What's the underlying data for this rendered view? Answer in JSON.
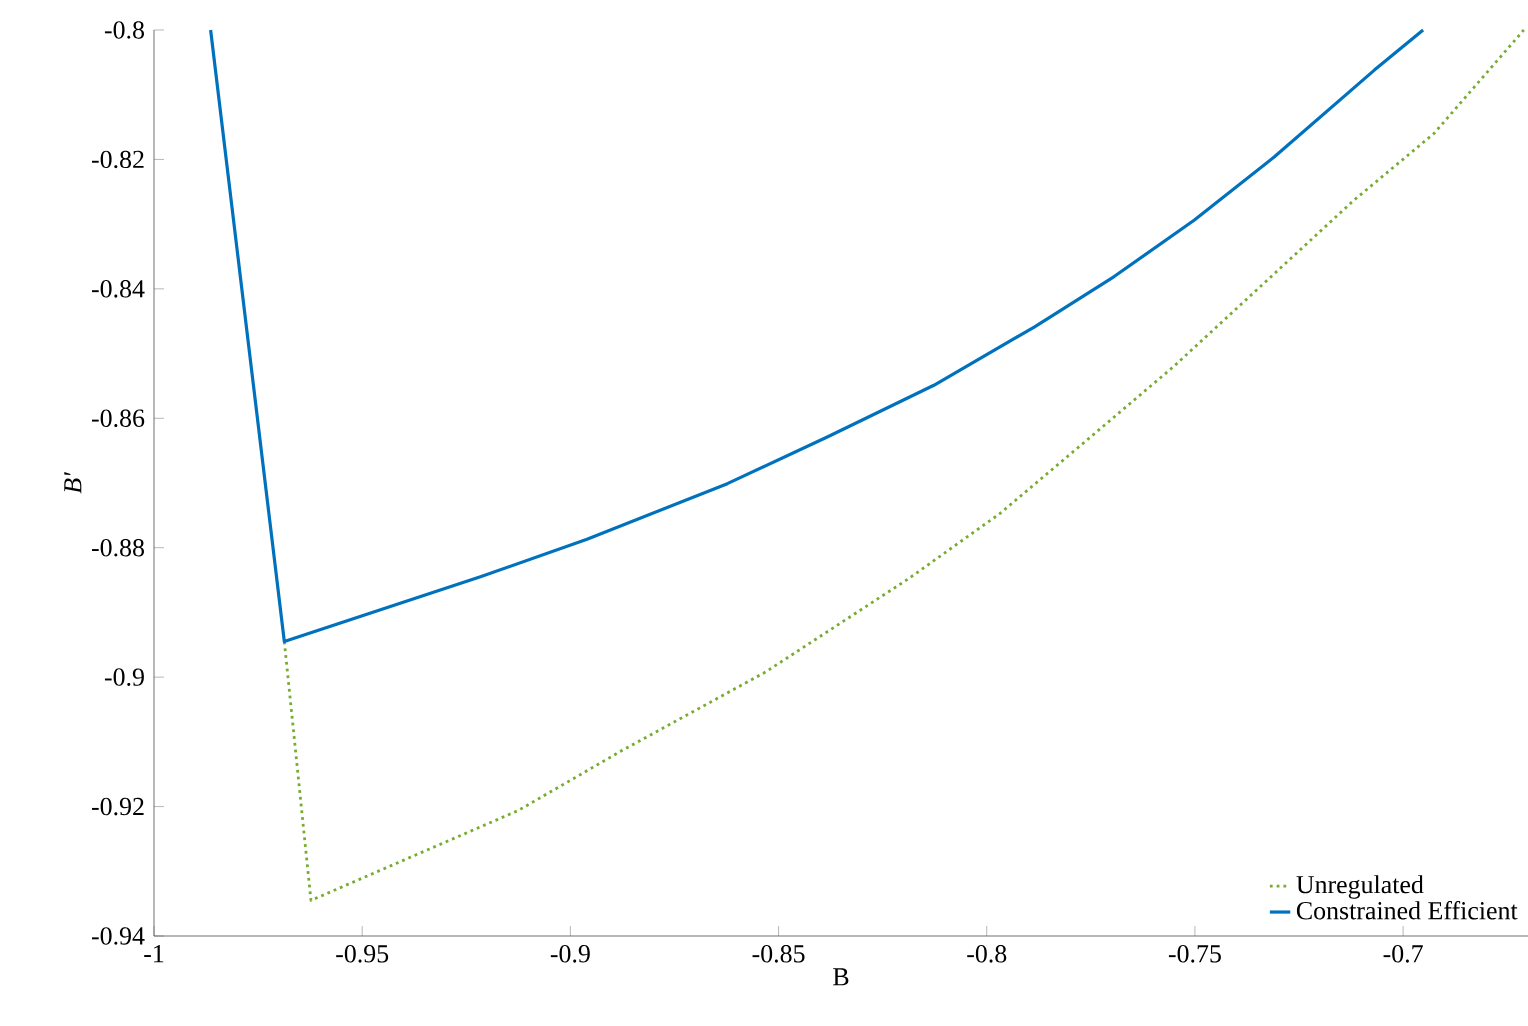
{
  "chart_data": {
    "type": "line",
    "xlabel": "B",
    "ylabel": "B′",
    "legend": "bottom right",
    "xlim": [
      -1,
      -0.67
    ],
    "ylim": [
      -0.94,
      -0.8
    ],
    "xticks": [
      -1,
      -0.95,
      -0.9,
      -0.85,
      -0.8,
      -0.75,
      -0.7
    ],
    "yticks": [
      -0.94,
      -0.92,
      -0.9,
      -0.88,
      -0.86,
      -0.84,
      -0.82,
      -0.8
    ],
    "series": [
      {
        "name": "Unregulated",
        "color": "#77ac30",
        "line_style": "dotted",
        "x": [
          -0.9687,
          -0.9623,
          -0.9125,
          -0.8875,
          -0.8531,
          -0.8188,
          -0.7968,
          -0.776,
          -0.7551,
          -0.7327,
          -0.7118,
          -0.6926,
          -0.671
        ],
        "values": [
          -0.8945,
          -0.9345,
          -0.9206,
          -0.9113,
          -0.8992,
          -0.8848,
          -0.8747,
          -0.8634,
          -0.852,
          -0.8387,
          -0.8263,
          -0.816,
          -0.8
        ]
      },
      {
        "name": "Constrained Efficient",
        "color": "#0072bd",
        "line_style": "solid",
        "x": [
          -0.9864,
          -0.9687,
          -0.9216,
          -0.896,
          -0.8623,
          -0.8383,
          -0.8127,
          -0.7886,
          -0.7694,
          -0.7502,
          -0.7309,
          -0.7069,
          -0.6952
        ],
        "values": [
          -0.8,
          -0.8945,
          -0.8845,
          -0.8787,
          -0.8701,
          -0.8629,
          -0.8549,
          -0.8459,
          -0.8381,
          -0.8294,
          -0.8196,
          -0.8062,
          -0.8
        ]
      }
    ]
  }
}
